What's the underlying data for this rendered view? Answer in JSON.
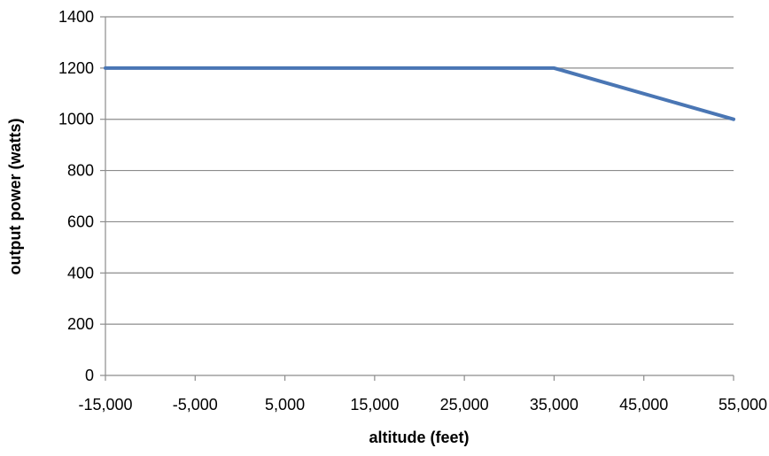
{
  "chart_data": {
    "type": "line",
    "title": "",
    "xlabel": "altitude (feet)",
    "ylabel": "output power (watts)",
    "xlim": [
      -15000,
      55000
    ],
    "ylim": [
      0,
      1400
    ],
    "x_ticks": [
      -15000,
      -5000,
      5000,
      15000,
      25000,
      35000,
      45000,
      55000
    ],
    "x_tick_labels": [
      "-15,000",
      "-5,000",
      "5,000",
      "15,000",
      "25,000",
      "35,000",
      "45,000",
      "55,000"
    ],
    "y_ticks": [
      0,
      200,
      400,
      600,
      800,
      1000,
      1200,
      1400
    ],
    "y_tick_labels": [
      "0",
      "200",
      "400",
      "600",
      "800",
      "1000",
      "1200",
      "1400"
    ],
    "grid": "horizontal",
    "legend": "none",
    "series": [
      {
        "color": "#4a76b4",
        "x": [
          -15000,
          35000,
          55000
        ],
        "y": [
          1200,
          1200,
          1000
        ]
      }
    ]
  }
}
